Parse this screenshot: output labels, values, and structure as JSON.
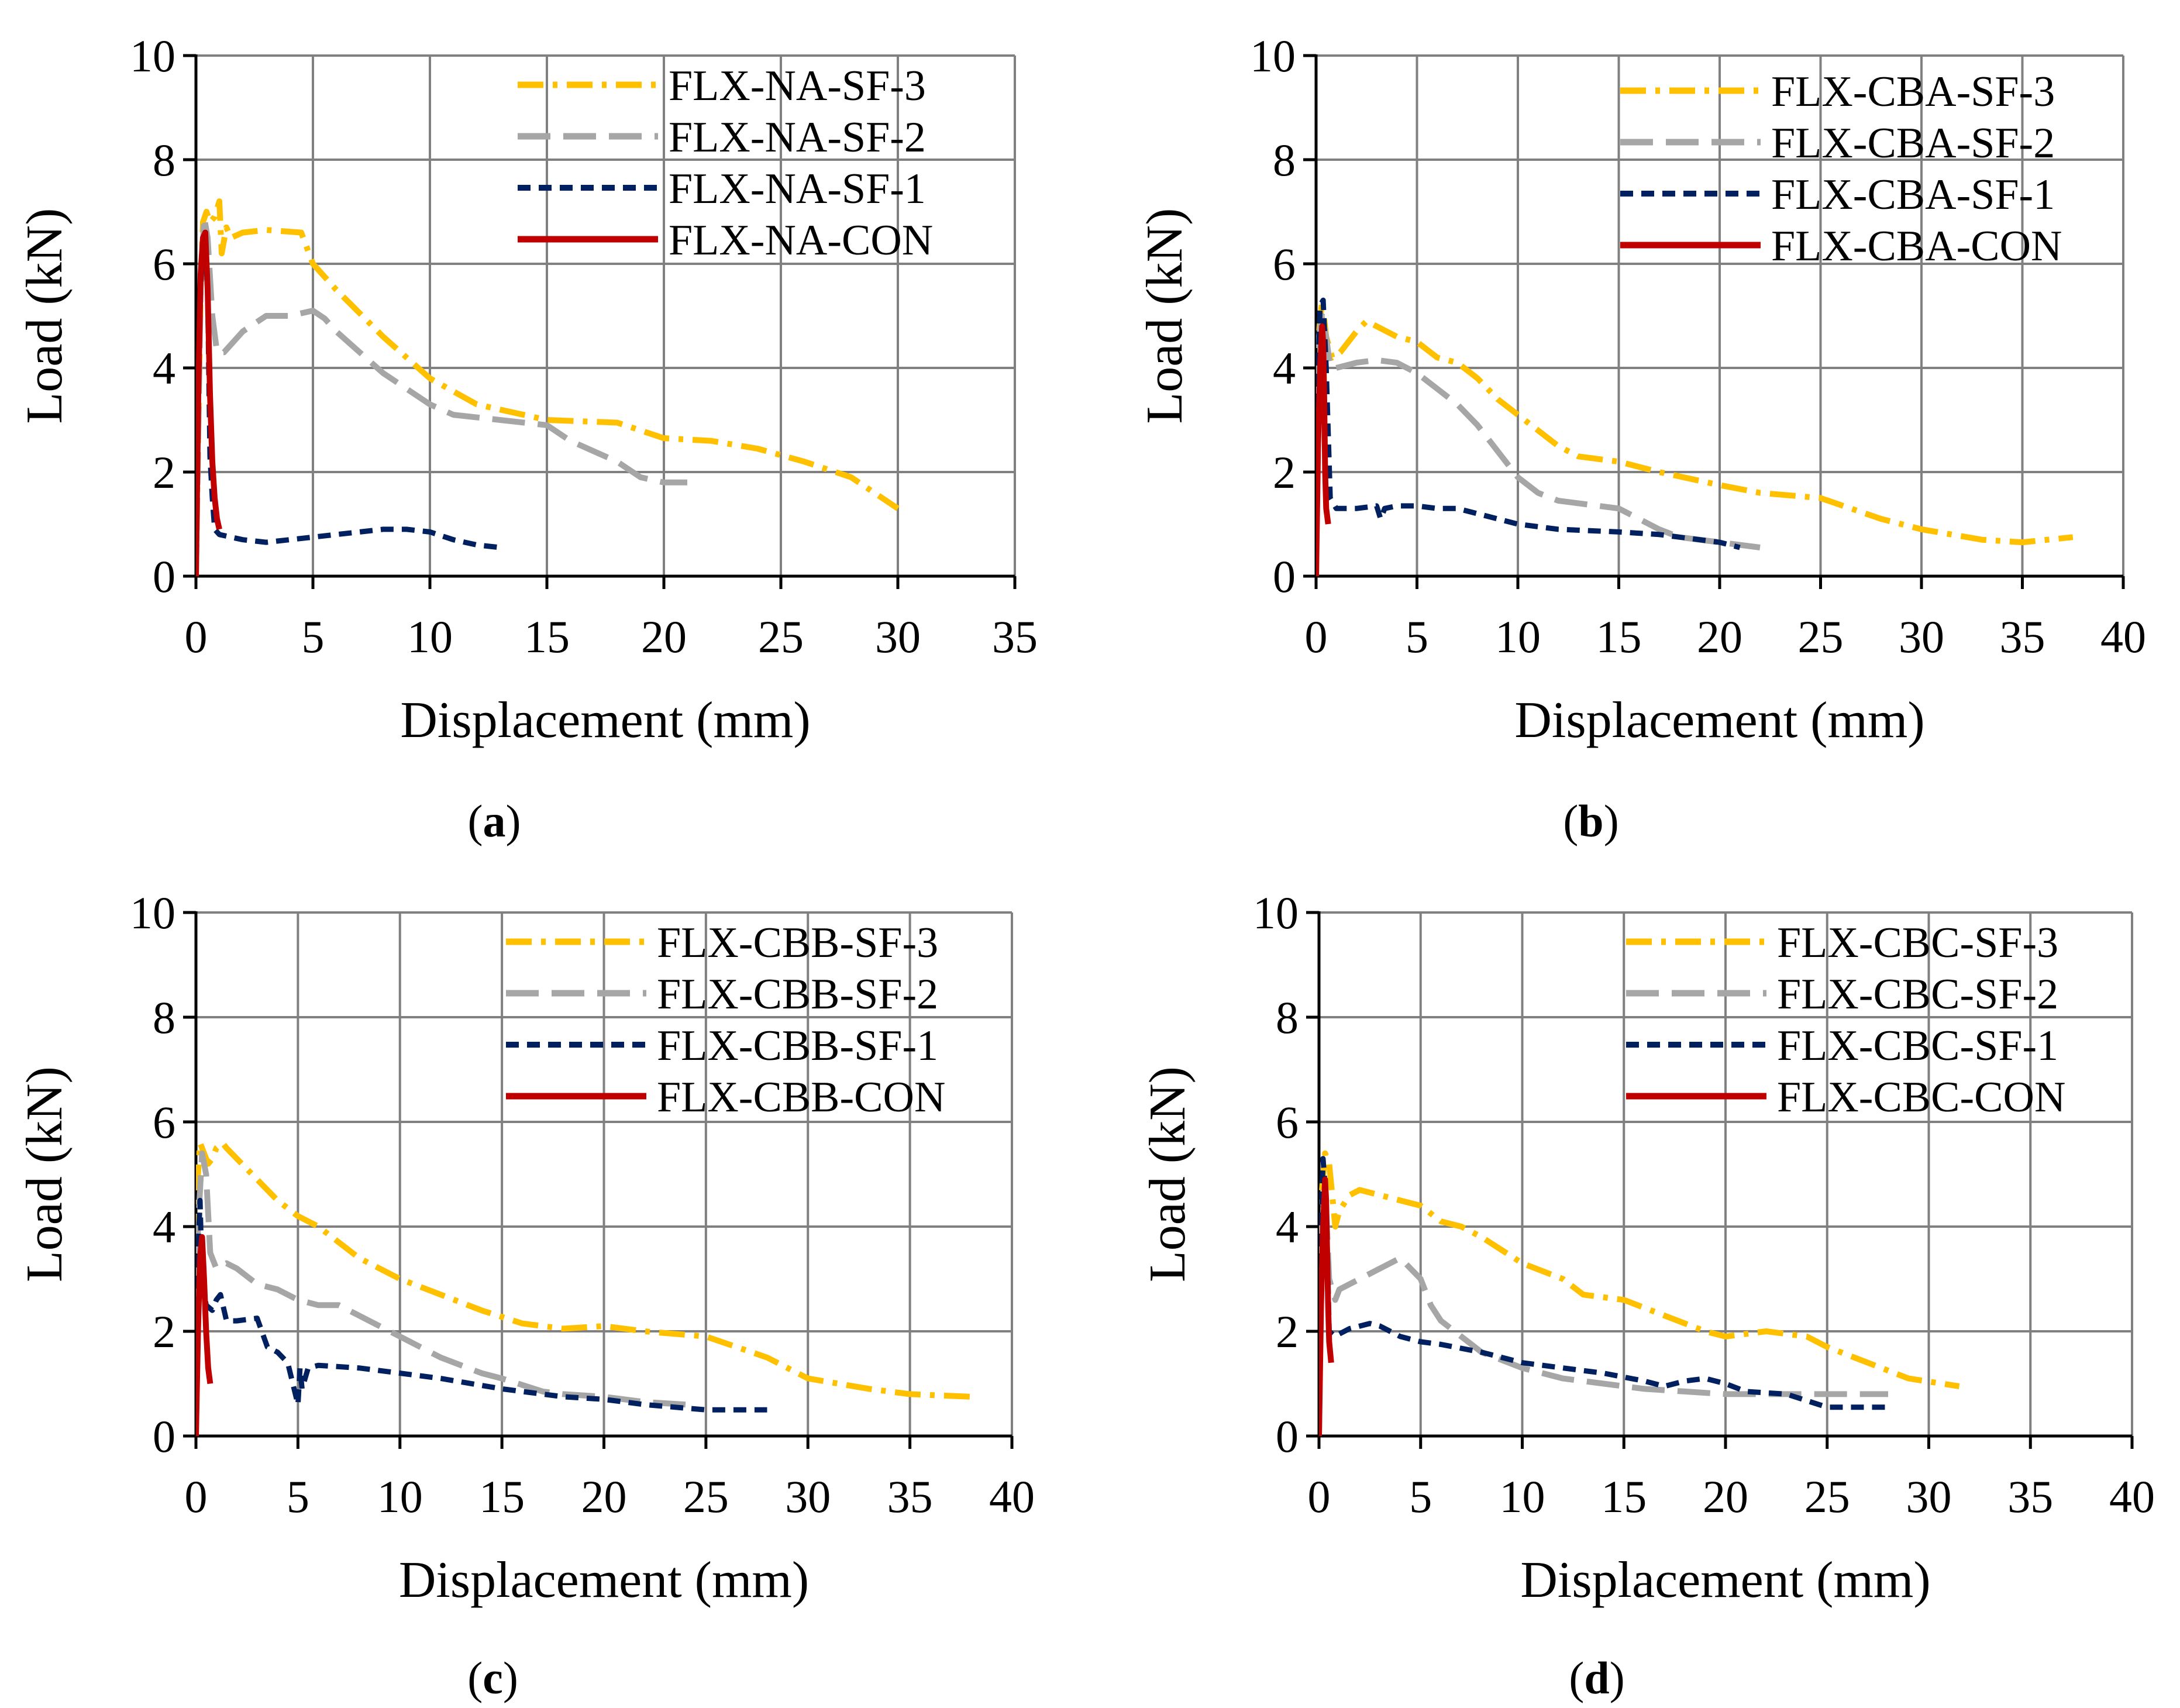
{
  "colors": {
    "sf3": "#FFC000",
    "sf2": "#A6A6A6",
    "sf1": "#002060",
    "con": "#C00000",
    "grid": "#808080",
    "axis": "#000000"
  },
  "chart_data": [
    {
      "type": "line",
      "panel_label": "a",
      "xlabel": "Displacement (mm)",
      "ylabel": "Load (kN)",
      "xlim": [
        0,
        35
      ],
      "ylim": [
        0,
        10
      ],
      "xticks": [
        0,
        5,
        10,
        15,
        20,
        25,
        30,
        35
      ],
      "yticks": [
        0,
        2,
        4,
        6,
        8,
        10
      ],
      "legend_position": "top-right",
      "series": [
        {
          "name": "FLX-NA-SF-3",
          "style": "sf3",
          "x": [
            0,
            0.2,
            0.3,
            0.45,
            0.6,
            0.8,
            1.0,
            1.1,
            1.3,
            1.5,
            2,
            3,
            4.5,
            5,
            6,
            8,
            10,
            12,
            15,
            18,
            20,
            22,
            24,
            26,
            28,
            30
          ],
          "y": [
            0,
            5.5,
            6.8,
            7.0,
            6.8,
            6.9,
            7.2,
            6.2,
            6.7,
            6.5,
            6.6,
            6.65,
            6.6,
            6.0,
            5.5,
            4.6,
            3.8,
            3.3,
            3.0,
            2.95,
            2.65,
            2.6,
            2.45,
            2.2,
            1.9,
            1.3
          ]
        },
        {
          "name": "FLX-NA-SF-2",
          "style": "sf2",
          "x": [
            0,
            0.2,
            0.35,
            0.5,
            0.7,
            0.9,
            1.2,
            2,
            3,
            4,
            5,
            5.5,
            6,
            7,
            8,
            9,
            10,
            11,
            13,
            15,
            16,
            17,
            18,
            19,
            20,
            21
          ],
          "y": [
            0,
            5.5,
            6.9,
            6.5,
            5.0,
            4.3,
            4.3,
            4.7,
            5.0,
            5.0,
            5.1,
            4.95,
            4.7,
            4.3,
            3.9,
            3.6,
            3.3,
            3.1,
            3.0,
            2.9,
            2.6,
            2.4,
            2.2,
            1.9,
            1.8,
            1.8
          ]
        },
        {
          "name": "FLX-NA-SF-1",
          "style": "sf1",
          "x": [
            0,
            0.15,
            0.25,
            0.35,
            0.5,
            0.6,
            0.7,
            0.8,
            1.0,
            1.5,
            2,
            3,
            4,
            5,
            6,
            7,
            8,
            9,
            10,
            11,
            12,
            13
          ],
          "y": [
            0,
            5.0,
            6.0,
            6.5,
            5.5,
            2.3,
            1.5,
            0.9,
            0.8,
            0.75,
            0.7,
            0.65,
            0.7,
            0.75,
            0.8,
            0.85,
            0.9,
            0.9,
            0.85,
            0.7,
            0.6,
            0.55
          ]
        },
        {
          "name": "FLX-NA-CON",
          "style": "con",
          "x": [
            0,
            0.1,
            0.2,
            0.3,
            0.4,
            0.5,
            0.6,
            0.7,
            0.8,
            0.9,
            1.0
          ],
          "y": [
            0,
            3.5,
            5.8,
            6.5,
            6.6,
            5.5,
            3.5,
            2.2,
            1.5,
            1.1,
            0.9
          ]
        }
      ]
    },
    {
      "type": "line",
      "panel_label": "b",
      "xlabel": "Displacement (mm)",
      "ylabel": "Load (kN)",
      "xlim": [
        0,
        40
      ],
      "ylim": [
        0,
        10
      ],
      "xticks": [
        0,
        5,
        10,
        15,
        20,
        25,
        30,
        35,
        40
      ],
      "yticks": [
        0,
        2,
        4,
        6,
        8,
        10
      ],
      "legend_position": "top-right",
      "series": [
        {
          "name": "FLX-CBA-SF-3",
          "style": "sf3",
          "x": [
            0,
            0.1,
            0.3,
            0.5,
            0.8,
            1.2,
            2,
            2.5,
            3,
            4,
            5,
            6,
            7,
            8,
            9,
            10,
            11,
            12,
            13,
            15,
            17,
            20,
            22,
            25,
            28,
            30,
            33,
            35,
            37.5
          ],
          "y": [
            0,
            4.5,
            5.3,
            4.6,
            4.2,
            4.3,
            4.7,
            4.9,
            4.8,
            4.6,
            4.5,
            4.2,
            4.1,
            3.8,
            3.4,
            3.1,
            2.8,
            2.5,
            2.3,
            2.2,
            2.0,
            1.75,
            1.6,
            1.5,
            1.1,
            0.9,
            0.7,
            0.65,
            0.75
          ]
        },
        {
          "name": "FLX-CBA-SF-2",
          "style": "sf2",
          "x": [
            0,
            0.1,
            0.3,
            0.5,
            0.7,
            1.0,
            2,
            3,
            4,
            5,
            6,
            7,
            8,
            9,
            10,
            11,
            12,
            13,
            14,
            15,
            16,
            17,
            18,
            20,
            22
          ],
          "y": [
            0,
            4.5,
            5.0,
            4.6,
            4.0,
            4.0,
            4.1,
            4.15,
            4.1,
            3.9,
            3.6,
            3.3,
            2.9,
            2.4,
            1.9,
            1.6,
            1.45,
            1.4,
            1.35,
            1.3,
            1.1,
            0.9,
            0.75,
            0.65,
            0.55
          ]
        },
        {
          "name": "FLX-CBA-SF-1",
          "style": "sf1",
          "x": [
            0,
            0.1,
            0.2,
            0.35,
            0.5,
            0.7,
            1,
            2,
            3,
            3.2,
            3.4,
            4,
            5,
            6,
            7,
            8,
            10,
            12,
            15,
            17,
            20,
            21
          ],
          "y": [
            0,
            4.0,
            5.2,
            5.3,
            4.0,
            1.5,
            1.3,
            1.3,
            1.35,
            1.1,
            1.3,
            1.35,
            1.35,
            1.3,
            1.3,
            1.2,
            1.0,
            0.9,
            0.85,
            0.8,
            0.65,
            0.55
          ]
        },
        {
          "name": "FLX-CBA-CON",
          "style": "con",
          "x": [
            0,
            0.1,
            0.2,
            0.3,
            0.35,
            0.4,
            0.45,
            0.5,
            0.6
          ],
          "y": [
            0,
            2.5,
            4.0,
            4.8,
            4.5,
            3.5,
            2.0,
            1.3,
            1.0
          ]
        }
      ]
    },
    {
      "type": "line",
      "panel_label": "c",
      "xlabel": "Displacement (mm)",
      "ylabel": "Load (kN)",
      "xlim": [
        0,
        40
      ],
      "ylim": [
        0,
        10
      ],
      "xticks": [
        0,
        5,
        10,
        15,
        20,
        25,
        30,
        35,
        40
      ],
      "yticks": [
        0,
        2,
        4,
        6,
        8,
        10
      ],
      "legend_position": "top-right",
      "series": [
        {
          "name": "FLX-CBB-SF-3",
          "style": "sf3",
          "x": [
            0,
            0.1,
            0.2,
            0.4,
            0.6,
            0.8,
            1.0,
            1.3,
            1.5,
            2,
            3,
            4,
            5,
            6,
            7,
            8,
            10,
            12,
            14,
            16,
            18,
            20,
            22,
            25,
            28,
            30,
            33,
            35,
            38
          ],
          "y": [
            0,
            5.0,
            5.6,
            5.4,
            5.2,
            5.3,
            5.5,
            5.6,
            5.5,
            5.3,
            4.9,
            4.5,
            4.2,
            4.0,
            3.7,
            3.4,
            3.0,
            2.7,
            2.4,
            2.15,
            2.05,
            2.1,
            2.0,
            1.9,
            1.5,
            1.1,
            0.9,
            0.8,
            0.75
          ]
        },
        {
          "name": "FLX-CBB-SF-2",
          "style": "sf2",
          "x": [
            0,
            0.1,
            0.3,
            0.5,
            0.7,
            1.0,
            1.5,
            2,
            3,
            4,
            5,
            6,
            7,
            8,
            9,
            10,
            12,
            14,
            15,
            17,
            18,
            20,
            22,
            24
          ],
          "y": [
            0,
            4.0,
            5.4,
            5.0,
            3.5,
            3.2,
            3.3,
            3.2,
            2.9,
            2.8,
            2.6,
            2.5,
            2.5,
            2.3,
            2.1,
            1.9,
            1.5,
            1.2,
            1.1,
            0.85,
            0.8,
            0.75,
            0.65,
            0.6
          ]
        },
        {
          "name": "FLX-CBB-SF-1",
          "style": "sf1",
          "x": [
            0,
            0.1,
            0.2,
            0.3,
            0.5,
            0.8,
            1.0,
            1.2,
            1.5,
            2,
            3,
            3.5,
            4,
            4.5,
            5.0,
            5.1,
            5.2,
            5.5,
            6,
            8,
            10,
            12,
            15,
            18,
            20,
            22,
            25,
            28
          ],
          "y": [
            0,
            3.5,
            4.5,
            3.0,
            2.5,
            2.4,
            2.6,
            2.7,
            2.2,
            2.2,
            2.25,
            1.7,
            1.6,
            1.4,
            0.6,
            1.3,
            0.9,
            1.3,
            1.35,
            1.3,
            1.2,
            1.1,
            0.9,
            0.75,
            0.7,
            0.6,
            0.5,
            0.5
          ]
        },
        {
          "name": "FLX-CBB-CON",
          "style": "con",
          "x": [
            0,
            0.1,
            0.2,
            0.3,
            0.4,
            0.5,
            0.6,
            0.7
          ],
          "y": [
            0,
            2.0,
            3.4,
            3.8,
            3.0,
            2.0,
            1.3,
            1.0
          ]
        }
      ]
    },
    {
      "type": "line",
      "panel_label": "d",
      "xlabel": "Displacement (mm)",
      "ylabel": "Load (kN)",
      "xlim": [
        0,
        40
      ],
      "ylim": [
        0,
        10
      ],
      "xticks": [
        0,
        5,
        10,
        15,
        20,
        25,
        30,
        35,
        40
      ],
      "yticks": [
        0,
        2,
        4,
        6,
        8,
        10
      ],
      "legend_position": "top-right",
      "series": [
        {
          "name": "FLX-CBC-SF-3",
          "style": "sf3",
          "x": [
            0,
            0.1,
            0.3,
            0.5,
            0.8,
            1.0,
            1.5,
            2,
            3,
            4,
            5,
            6,
            7,
            8,
            10,
            12,
            13,
            15,
            17,
            19,
            20,
            22,
            24,
            25,
            27,
            29,
            31.5
          ],
          "y": [
            0,
            4.5,
            5.4,
            5.2,
            4.0,
            4.3,
            4.6,
            4.7,
            4.6,
            4.5,
            4.4,
            4.1,
            4.0,
            3.8,
            3.3,
            3.0,
            2.7,
            2.6,
            2.3,
            2.0,
            1.9,
            2.0,
            1.9,
            1.7,
            1.4,
            1.1,
            0.95
          ]
        },
        {
          "name": "FLX-CBC-SF-2",
          "style": "sf2",
          "x": [
            0,
            0.1,
            0.3,
            0.5,
            0.8,
            1.0,
            1.5,
            2,
            3,
            4,
            5,
            5.5,
            6,
            7,
            8,
            10,
            12,
            14,
            16,
            18,
            20,
            22,
            25,
            28
          ],
          "y": [
            0,
            3.8,
            4.8,
            3.0,
            2.6,
            2.8,
            2.9,
            3.0,
            3.2,
            3.4,
            3.0,
            2.5,
            2.2,
            1.9,
            1.6,
            1.3,
            1.1,
            1.0,
            0.9,
            0.85,
            0.8,
            0.8,
            0.8,
            0.8
          ]
        },
        {
          "name": "FLX-CBC-SF-1",
          "style": "sf1",
          "x": [
            0,
            0.1,
            0.2,
            0.35,
            0.5,
            0.8,
            1.0,
            1.5,
            2,
            2.5,
            3,
            4,
            5,
            6,
            8,
            10,
            12,
            14,
            16,
            17,
            18,
            19,
            20,
            21,
            23,
            25,
            28
          ],
          "y": [
            0,
            4.0,
            5.3,
            4.5,
            2.0,
            1.9,
            1.95,
            2.05,
            2.1,
            2.15,
            2.1,
            1.9,
            1.8,
            1.75,
            1.6,
            1.4,
            1.3,
            1.2,
            1.05,
            0.95,
            1.05,
            1.1,
            1.0,
            0.85,
            0.8,
            0.55,
            0.55
          ]
        },
        {
          "name": "FLX-CBC-CON",
          "style": "con",
          "x": [
            0,
            0.1,
            0.2,
            0.3,
            0.35,
            0.4,
            0.45,
            0.5,
            0.6
          ],
          "y": [
            0,
            2.5,
            4.0,
            4.9,
            4.5,
            3.5,
            2.5,
            1.8,
            1.4
          ]
        }
      ]
    }
  ]
}
